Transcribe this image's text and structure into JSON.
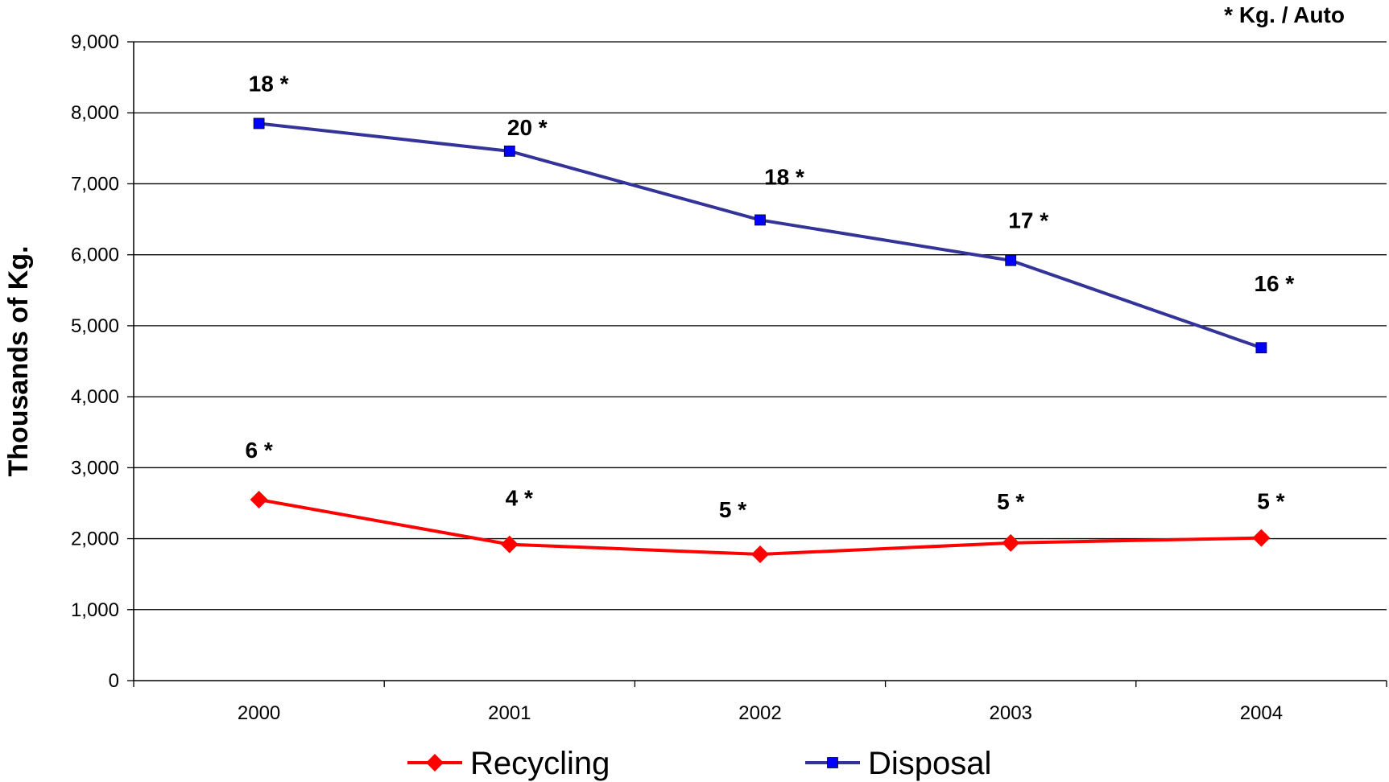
{
  "chart_data": {
    "type": "line",
    "title": "",
    "xlabel": "",
    "ylabel": "Thousands of Kg.",
    "note": "*  Kg. / Auto",
    "ylim": [
      0,
      9000
    ],
    "ytick_step": 1000,
    "ytick_labels": [
      "0",
      "1,000",
      "2,000",
      "3,000",
      "4,000",
      "5,000",
      "6,000",
      "7,000",
      "8,000",
      "9,000"
    ],
    "categories": [
      "2000",
      "2001",
      "2002",
      "2003",
      "2004"
    ],
    "grid": true,
    "legend_position": "bottom",
    "series": [
      {
        "name": "Recycling",
        "color": "#ff0000",
        "marker": "diamond",
        "values": [
          2550,
          1920,
          1780,
          1940,
          2010
        ],
        "labels": [
          "6 *",
          "4 *",
          "5 *",
          "5 *",
          "5 *"
        ]
      },
      {
        "name": "Disposal",
        "color": "#333399",
        "marker_color": "#0000ff",
        "marker": "square",
        "values": [
          7850,
          7460,
          6490,
          5920,
          4690
        ],
        "labels": [
          "18 *",
          "20 *",
          "18 *",
          "17 *",
          "16 *"
        ]
      }
    ]
  }
}
